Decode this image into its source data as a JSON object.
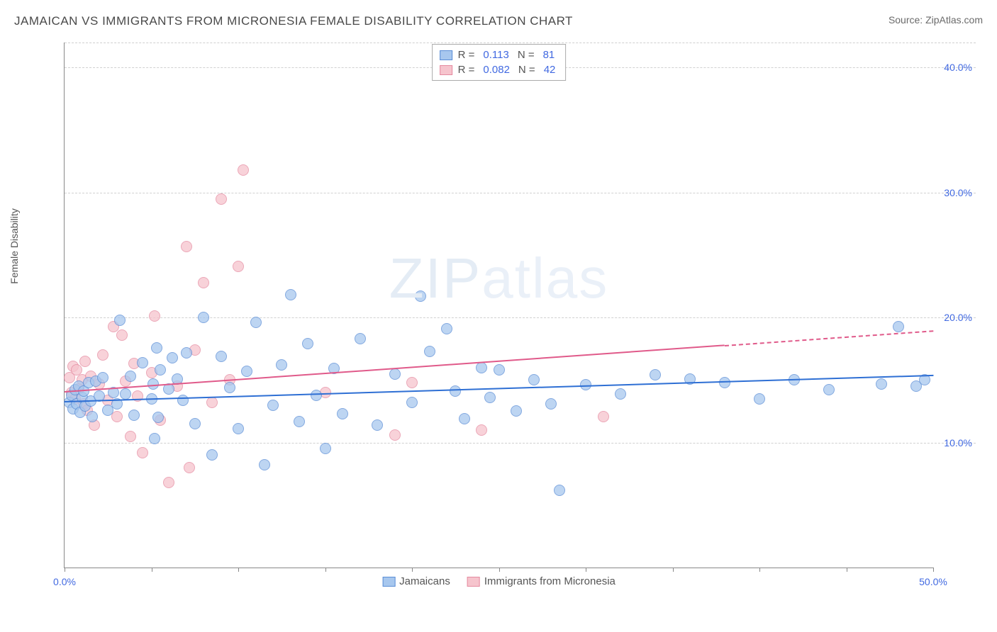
{
  "title": "JAMAICAN VS IMMIGRANTS FROM MICRONESIA FEMALE DISABILITY CORRELATION CHART",
  "source": "Source: ZipAtlas.com",
  "watermark": {
    "zip": "ZIP",
    "atlas": "atlas"
  },
  "chart": {
    "type": "scatter",
    "y_axis_label": "Female Disability",
    "xlim": [
      0,
      50
    ],
    "ylim": [
      0,
      42
    ],
    "x_ticks": [
      0,
      5,
      10,
      15,
      20,
      25,
      30,
      35,
      40,
      45,
      50
    ],
    "x_tick_labels": {
      "0": "0.0%",
      "50": "50.0%"
    },
    "y_grid_lines": [
      10,
      20,
      30,
      40,
      42
    ],
    "y_tick_labels": {
      "10": "10.0%",
      "20": "20.0%",
      "30": "30.0%",
      "40": "40.0%"
    },
    "background_color": "#ffffff",
    "grid_color": "#d0d0d0",
    "axis_color": "#888888",
    "tick_label_color": "#4169e1",
    "point_radius": 8,
    "point_opacity": 0.75,
    "series": [
      {
        "id": "jamaicans",
        "label": "Jamaicans",
        "fill_color": "#a7c7ee",
        "stroke_color": "#5a8dd6",
        "trend_color": "#2e6fd4",
        "R": "0.113",
        "N": "81",
        "trend": {
          "x1": 0,
          "y1": 13.3,
          "x2": 50,
          "y2": 15.4,
          "solid_until_x": 50
        },
        "points": [
          [
            0.3,
            13.2
          ],
          [
            0.4,
            13.8
          ],
          [
            0.5,
            12.7
          ],
          [
            0.6,
            14.2
          ],
          [
            0.7,
            13.1
          ],
          [
            0.8,
            14.5
          ],
          [
            0.9,
            12.4
          ],
          [
            1.0,
            13.6
          ],
          [
            1.1,
            14.1
          ],
          [
            1.2,
            12.9
          ],
          [
            1.4,
            14.8
          ],
          [
            1.5,
            13.3
          ],
          [
            1.6,
            12.1
          ],
          [
            1.8,
            14.9
          ],
          [
            2.0,
            13.7
          ],
          [
            2.2,
            15.2
          ],
          [
            2.5,
            12.6
          ],
          [
            2.8,
            14.0
          ],
          [
            3.0,
            13.1
          ],
          [
            3.2,
            19.8
          ],
          [
            3.5,
            13.9
          ],
          [
            3.8,
            15.3
          ],
          [
            4.0,
            12.2
          ],
          [
            4.5,
            16.4
          ],
          [
            5.0,
            13.5
          ],
          [
            5.1,
            14.7
          ],
          [
            5.2,
            10.3
          ],
          [
            5.3,
            17.6
          ],
          [
            5.4,
            12.0
          ],
          [
            5.5,
            15.8
          ],
          [
            6.0,
            14.3
          ],
          [
            6.2,
            16.8
          ],
          [
            6.5,
            15.1
          ],
          [
            6.8,
            13.4
          ],
          [
            7.0,
            17.2
          ],
          [
            7.5,
            11.5
          ],
          [
            8.0,
            20.0
          ],
          [
            8.5,
            9.0
          ],
          [
            9.0,
            16.9
          ],
          [
            9.5,
            14.4
          ],
          [
            10.0,
            11.1
          ],
          [
            10.5,
            15.7
          ],
          [
            11.0,
            19.6
          ],
          [
            11.5,
            8.2
          ],
          [
            12.0,
            13.0
          ],
          [
            12.5,
            16.2
          ],
          [
            13.0,
            21.8
          ],
          [
            13.5,
            11.7
          ],
          [
            14.0,
            17.9
          ],
          [
            14.5,
            13.8
          ],
          [
            15.0,
            9.5
          ],
          [
            15.5,
            15.9
          ],
          [
            16.0,
            12.3
          ],
          [
            17.0,
            18.3
          ],
          [
            18.0,
            11.4
          ],
          [
            19.0,
            15.5
          ],
          [
            20.0,
            13.2
          ],
          [
            20.5,
            21.7
          ],
          [
            21.0,
            17.3
          ],
          [
            22.0,
            19.1
          ],
          [
            22.5,
            14.1
          ],
          [
            23.0,
            11.9
          ],
          [
            24.0,
            16.0
          ],
          [
            24.5,
            13.6
          ],
          [
            25.0,
            15.8
          ],
          [
            26.0,
            12.5
          ],
          [
            27.0,
            15.0
          ],
          [
            28.0,
            13.1
          ],
          [
            28.5,
            6.2
          ],
          [
            30.0,
            14.6
          ],
          [
            32.0,
            13.9
          ],
          [
            34.0,
            15.4
          ],
          [
            36.0,
            15.1
          ],
          [
            38.0,
            14.8
          ],
          [
            40.0,
            13.5
          ],
          [
            42.0,
            15.0
          ],
          [
            44.0,
            14.2
          ],
          [
            47.0,
            14.7
          ],
          [
            48.0,
            19.3
          ],
          [
            49.0,
            14.5
          ],
          [
            49.5,
            15.0
          ]
        ]
      },
      {
        "id": "micronesia",
        "label": "Immigrants from Micronesia",
        "fill_color": "#f6c4cd",
        "stroke_color": "#e58aa0",
        "trend_color": "#e05a8a",
        "R": "0.082",
        "N": "42",
        "trend": {
          "x1": 0,
          "y1": 14.1,
          "x2": 50,
          "y2": 19.0,
          "solid_until_x": 38
        },
        "points": [
          [
            0.3,
            15.2
          ],
          [
            0.4,
            14.0
          ],
          [
            0.5,
            16.1
          ],
          [
            0.6,
            13.5
          ],
          [
            0.7,
            15.8
          ],
          [
            0.8,
            14.3
          ],
          [
            1.0,
            15.0
          ],
          [
            1.1,
            13.1
          ],
          [
            1.2,
            16.5
          ],
          [
            1.3,
            12.6
          ],
          [
            1.5,
            15.3
          ],
          [
            1.7,
            11.4
          ],
          [
            2.0,
            14.7
          ],
          [
            2.2,
            17.0
          ],
          [
            2.5,
            13.4
          ],
          [
            2.8,
            19.3
          ],
          [
            3.0,
            12.1
          ],
          [
            3.3,
            18.6
          ],
          [
            3.5,
            14.9
          ],
          [
            3.8,
            10.5
          ],
          [
            4.0,
            16.3
          ],
          [
            4.2,
            13.7
          ],
          [
            4.5,
            9.2
          ],
          [
            5.0,
            15.6
          ],
          [
            5.2,
            20.1
          ],
          [
            5.5,
            11.8
          ],
          [
            6.0,
            6.8
          ],
          [
            6.5,
            14.5
          ],
          [
            7.0,
            25.7
          ],
          [
            7.2,
            8.0
          ],
          [
            7.5,
            17.4
          ],
          [
            8.0,
            22.8
          ],
          [
            8.5,
            13.2
          ],
          [
            9.0,
            29.5
          ],
          [
            9.5,
            15.0
          ],
          [
            10.0,
            24.1
          ],
          [
            10.3,
            31.8
          ],
          [
            15.0,
            14.0
          ],
          [
            19.0,
            10.6
          ],
          [
            20.0,
            14.8
          ],
          [
            24.0,
            11.0
          ],
          [
            31.0,
            12.1
          ]
        ]
      }
    ],
    "legend_top": {
      "r_label": "R =",
      "n_label": "N ="
    },
    "legend_bottom_items": [
      "jamaicans",
      "micronesia"
    ]
  }
}
